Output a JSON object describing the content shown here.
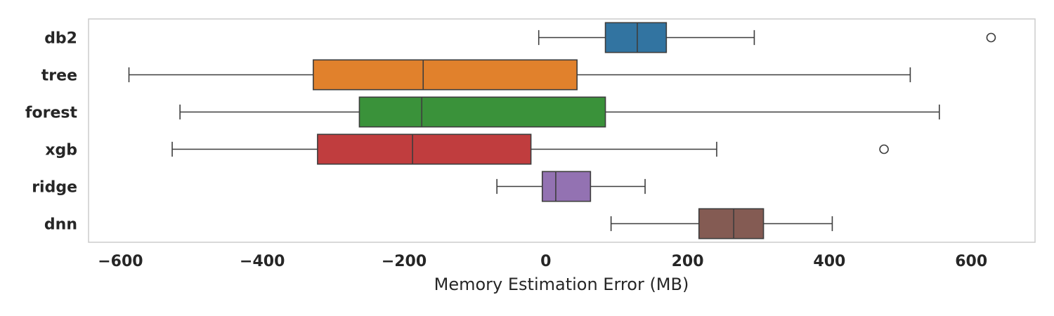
{
  "chart_data": {
    "type": "box",
    "orientation": "horizontal",
    "title": "",
    "xlabel": "Memory Estimation Error (MB)",
    "ylabel": "",
    "xlim": [
      -645,
      690
    ],
    "xticks": [
      -600,
      -400,
      -200,
      0,
      200,
      400,
      600
    ],
    "xtick_labels": [
      "−600",
      "−400",
      "−200",
      "0",
      "200",
      "400",
      "600"
    ],
    "grid": false,
    "categories": [
      "db2",
      "tree",
      "forest",
      "xgb",
      "ridge",
      "dnn"
    ],
    "series": [
      {
        "category": "db2",
        "whisker_low": -10,
        "q1": 84,
        "median": 129,
        "q3": 170,
        "whisker_high": 294,
        "outliers": [
          628
        ],
        "color": "#3274a1"
      },
      {
        "category": "tree",
        "whisker_low": -588,
        "q1": -328,
        "median": -173,
        "q3": 44,
        "whisker_high": 514,
        "outliers": [],
        "color": "#e1812c"
      },
      {
        "category": "forest",
        "whisker_low": -516,
        "q1": -263,
        "median": -175,
        "q3": 84,
        "whisker_high": 555,
        "outliers": [],
        "color": "#3a923a"
      },
      {
        "category": "xgb",
        "whisker_low": -527,
        "q1": -322,
        "median": -188,
        "q3": -21,
        "whisker_high": 241,
        "outliers": [
          477
        ],
        "color": "#c03d3e"
      },
      {
        "category": "ridge",
        "whisker_low": -69,
        "q1": -5,
        "median": 14,
        "q3": 63,
        "whisker_high": 140,
        "outliers": [],
        "color": "#9372b2"
      },
      {
        "category": "dnn",
        "whisker_low": 92,
        "q1": 216,
        "median": 265,
        "q3": 307,
        "whisker_high": 404,
        "outliers": [],
        "color": "#845b53"
      }
    ]
  }
}
